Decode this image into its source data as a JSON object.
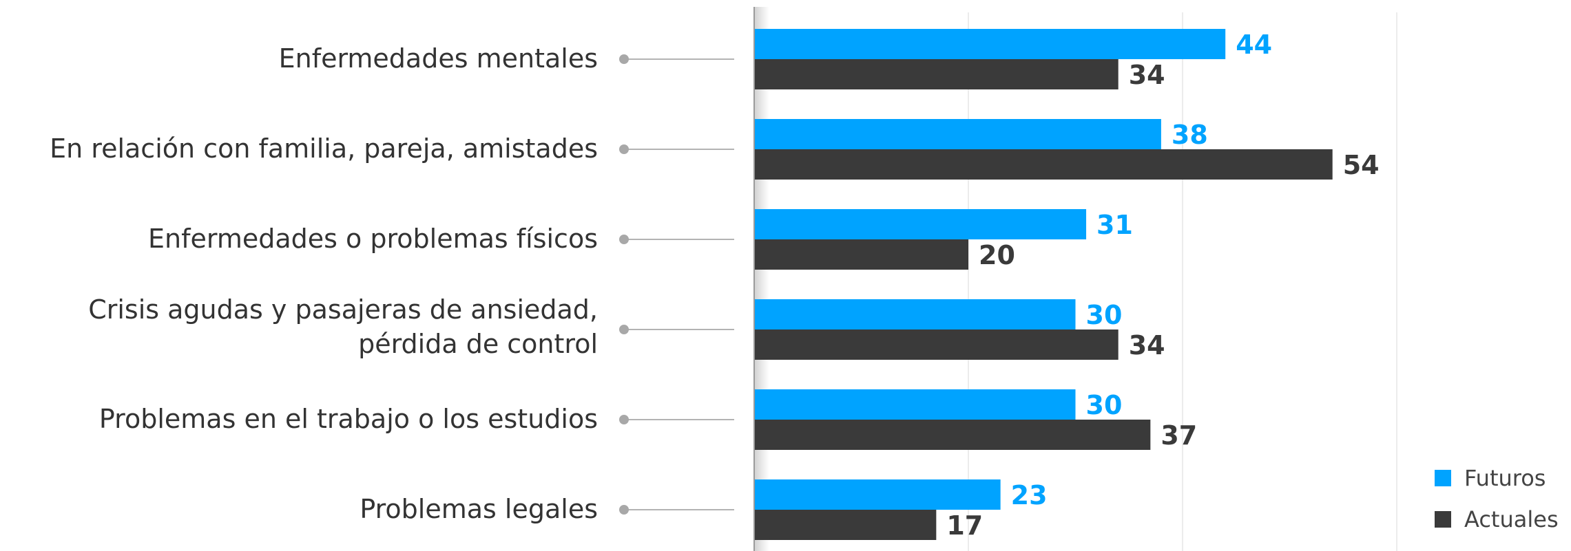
{
  "chart_data": {
    "type": "bar",
    "orientation": "horizontal",
    "categories": [
      [
        "Enfermedades mentales"
      ],
      [
        "En relación con familia, pareja, amistades"
      ],
      [
        "Enfermedades o problemas físicos"
      ],
      [
        "Crisis agudas y pasajeras de ansiedad,",
        "pérdida de control"
      ],
      [
        "Problemas en el trabajo o los estudios"
      ],
      [
        "Problemas legales"
      ]
    ],
    "series": [
      {
        "name": "Futuros",
        "color": "#00a3ff",
        "values": [
          44,
          38,
          31,
          30,
          30,
          23
        ]
      },
      {
        "name": "Actuales",
        "color": "#3a3a3a",
        "values": [
          34,
          54,
          20,
          34,
          37,
          17
        ]
      }
    ],
    "xlim": [
      0,
      60
    ],
    "grid": true,
    "legend_position": "bottom-right"
  }
}
